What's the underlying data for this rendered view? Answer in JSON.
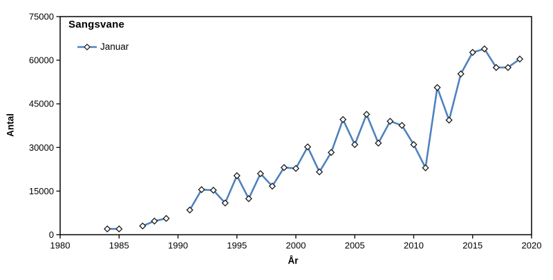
{
  "colors": {
    "line": "#4F81BD",
    "marker_fill": "#FFFFFF",
    "marker_stroke": "#1A1A1A",
    "axis": "#000000",
    "text": "#000000",
    "background": "#FFFFFF"
  },
  "chart_data": {
    "type": "line",
    "title": "Sangsvane",
    "xlabel": "År",
    "ylabel": "Antal",
    "xlim": [
      1980,
      2020
    ],
    "ylim": [
      0,
      75000
    ],
    "x_ticks": [
      1980,
      1985,
      1990,
      1995,
      2000,
      2005,
      2010,
      2015,
      2020
    ],
    "y_ticks": [
      0,
      15000,
      30000,
      45000,
      60000,
      75000
    ],
    "grid": false,
    "legend_position": "top-left-inside",
    "legend": [
      {
        "label": "Januar",
        "marker": "diamond"
      }
    ],
    "series": [
      {
        "name": "Januar",
        "points": [
          {
            "year": 1984,
            "value": 2000
          },
          {
            "year": 1985,
            "value": 2000
          },
          {
            "year": 1987,
            "value": 3000
          },
          {
            "year": 1988,
            "value": 4700
          },
          {
            "year": 1989,
            "value": 5600
          },
          {
            "year": 1991,
            "value": 8500
          },
          {
            "year": 1992,
            "value": 15500
          },
          {
            "year": 1993,
            "value": 15300
          },
          {
            "year": 1994,
            "value": 10900
          },
          {
            "year": 1995,
            "value": 20300
          },
          {
            "year": 1996,
            "value": 12400
          },
          {
            "year": 1997,
            "value": 21000
          },
          {
            "year": 1998,
            "value": 16700
          },
          {
            "year": 1999,
            "value": 23100
          },
          {
            "year": 2000,
            "value": 22800
          },
          {
            "year": 2001,
            "value": 30200
          },
          {
            "year": 2002,
            "value": 21600
          },
          {
            "year": 2003,
            "value": 28300
          },
          {
            "year": 2004,
            "value": 39600
          },
          {
            "year": 2005,
            "value": 31000
          },
          {
            "year": 2006,
            "value": 41400
          },
          {
            "year": 2007,
            "value": 31500
          },
          {
            "year": 2008,
            "value": 39000
          },
          {
            "year": 2009,
            "value": 37600
          },
          {
            "year": 2010,
            "value": 31000
          },
          {
            "year": 2011,
            "value": 23000
          },
          {
            "year": 2012,
            "value": 50600
          },
          {
            "year": 2013,
            "value": 39400
          },
          {
            "year": 2014,
            "value": 55300
          },
          {
            "year": 2015,
            "value": 62700
          },
          {
            "year": 2016,
            "value": 63900
          },
          {
            "year": 2017,
            "value": 57500
          },
          {
            "year": 2018,
            "value": 57500
          },
          {
            "year": 2019,
            "value": 60400
          }
        ]
      }
    ]
  }
}
